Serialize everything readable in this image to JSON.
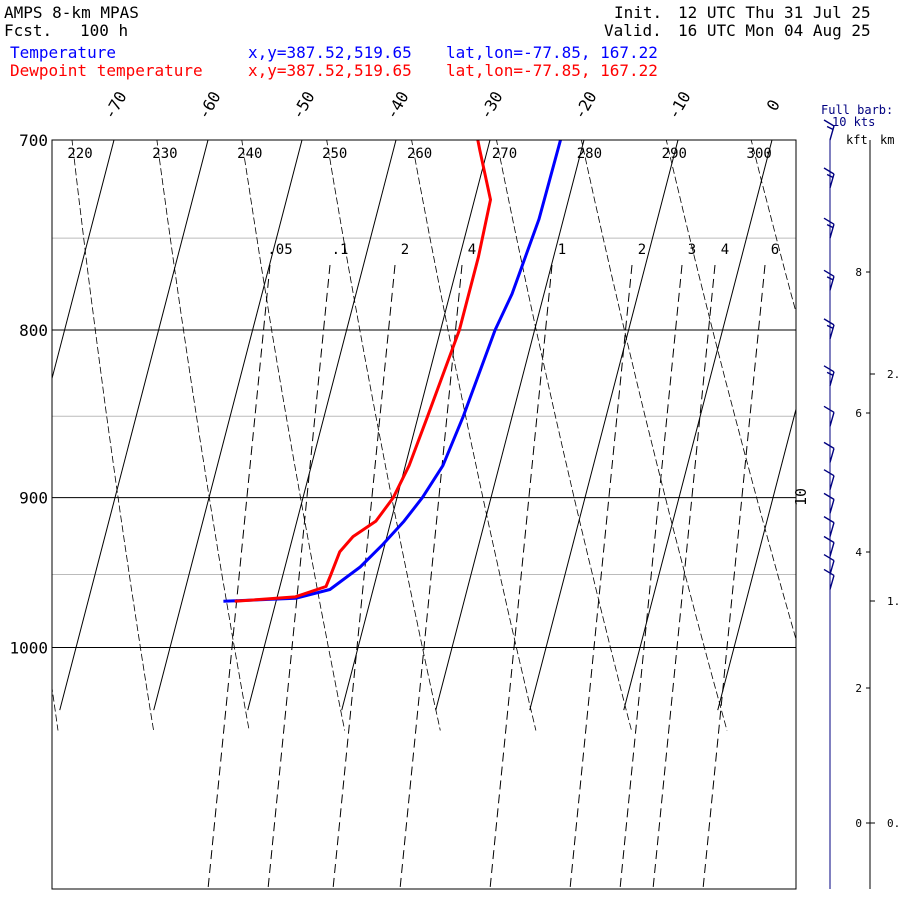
{
  "header": {
    "model": "AMPS 8-km MPAS",
    "fcst_label": "Fcst.",
    "fcst_value": "100 h",
    "init_label": "Init.",
    "init_value": "12 UTC Thu 31 Jul 25",
    "valid_label": "Valid.",
    "valid_value": "16 UTC Mon 04 Aug 25"
  },
  "legend": [
    {
      "name": "Temperature",
      "xy": "x,y=387.52,519.65",
      "latlon": "lat,lon=-77.85, 167.22",
      "color": "#0000ff"
    },
    {
      "name": "Dewpoint temperature",
      "xy": "x,y=387.52,519.65",
      "latlon": "lat,lon=-77.85, 167.22",
      "color": "#ff0000"
    }
  ],
  "barb_note": {
    "line1": "Full barb:",
    "line2": "10 kts"
  },
  "height_axis": {
    "left_label": "kft",
    "right_label": "km"
  },
  "chart_data": {
    "type": "line",
    "subtype": "skew-T log-P",
    "pressure_ticks": [
      700,
      800,
      900,
      1000
    ],
    "pressure_range": [
      700,
      1045
    ],
    "temperature_ticks": [
      -70,
      -60,
      -50,
      -40,
      -30,
      -20,
      -10,
      0
    ],
    "theta_labels": [
      "220",
      "230",
      "240",
      "250",
      "260",
      "270",
      "280",
      "290",
      "300"
    ],
    "mixing_ratio_labels": [
      ".05",
      ".1",
      "2",
      "4",
      "1",
      "2",
      "3",
      "4",
      "6"
    ],
    "isotherm_side_label": "10",
    "kft_ticks": [
      0,
      2,
      4,
      6,
      8
    ],
    "km_ticks": [
      "0.",
      "1.",
      "2."
    ],
    "series": [
      {
        "name": "Temperature",
        "color": "#0000ff",
        "points": [
          [
            700,
            -22.5
          ],
          [
            740,
            -22.6
          ],
          [
            780,
            -23.4
          ],
          [
            800,
            -24.2
          ],
          [
            850,
            -25.2
          ],
          [
            880,
            -26.0
          ],
          [
            900,
            -27.3
          ],
          [
            915,
            -28.6
          ],
          [
            930,
            -30.2
          ],
          [
            945,
            -32.0
          ],
          [
            960,
            -34.6
          ],
          [
            966,
            -38.0
          ],
          [
            968,
            -45.6
          ]
        ]
      },
      {
        "name": "Dewpoint temperature",
        "color": "#ff0000",
        "points": [
          [
            700,
            -31.3
          ],
          [
            705,
            -30.8
          ],
          [
            730,
            -28.3
          ],
          [
            760,
            -28.0
          ],
          [
            800,
            -28.0
          ],
          [
            850,
            -29.0
          ],
          [
            880,
            -29.6
          ],
          [
            900,
            -30.4
          ],
          [
            915,
            -31.6
          ],
          [
            925,
            -33.6
          ],
          [
            935,
            -34.6
          ],
          [
            950,
            -34.9
          ],
          [
            958,
            -35.1
          ],
          [
            965,
            -38.1
          ],
          [
            968,
            -44.4
          ]
        ]
      }
    ],
    "wind_barbs": [
      {
        "p": 700,
        "speed_kt": 15
      },
      {
        "p": 724,
        "speed_kt": 15
      },
      {
        "p": 750,
        "speed_kt": 15
      },
      {
        "p": 778,
        "speed_kt": 15
      },
      {
        "p": 805,
        "speed_kt": 15
      },
      {
        "p": 832,
        "speed_kt": 15
      },
      {
        "p": 856,
        "speed_kt": 10
      },
      {
        "p": 878,
        "speed_kt": 10
      },
      {
        "p": 895,
        "speed_kt": 10
      },
      {
        "p": 910,
        "speed_kt": 10
      },
      {
        "p": 925,
        "speed_kt": 10
      },
      {
        "p": 938,
        "speed_kt": 10
      },
      {
        "p": 950,
        "speed_kt": 10
      },
      {
        "p": 960,
        "speed_kt": 10
      }
    ]
  }
}
